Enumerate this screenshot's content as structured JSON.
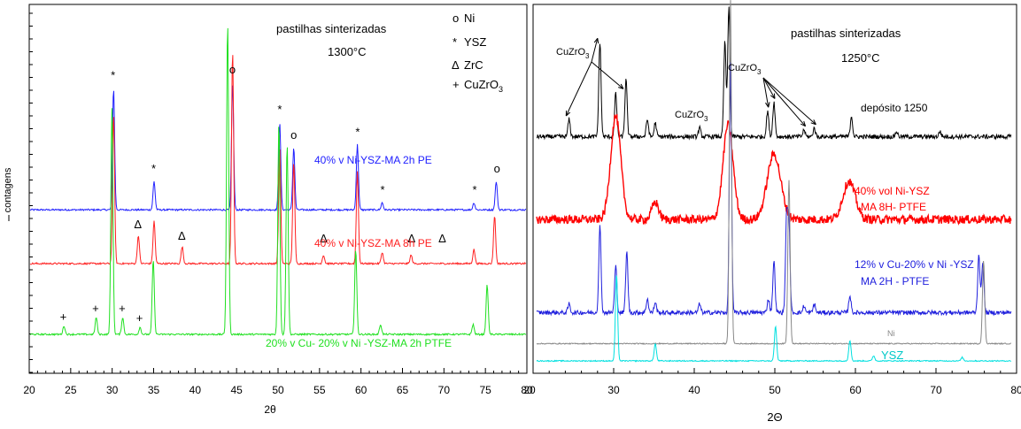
{
  "chart_data": [
    {
      "type": "line",
      "title": "pastilhas sinterizadas",
      "subtitle": "1300°C",
      "xlabel": "2θ",
      "ylabel": "contagens",
      "xlim": [
        20,
        80
      ],
      "xticks": [
        20,
        25,
        30,
        35,
        40,
        45,
        50,
        55,
        60,
        65,
        70,
        75,
        80
      ],
      "xtick_labels": [
        "20",
        "25",
        "30",
        "35",
        "40",
        "45",
        "50",
        "55",
        "60",
        "65",
        "70",
        "75",
        "80"
      ],
      "legend": [
        {
          "symbol": "o",
          "name": "Ni"
        },
        {
          "symbol": "*",
          "name": "YSZ"
        },
        {
          "symbol": "Δ",
          "name": "ZrC"
        },
        {
          "symbol": "+",
          "name": "CuZrO3"
        }
      ],
      "series": [
        {
          "name": "40% v Ni-YSZ-MA 2h PE",
          "color": "#2020ff",
          "baseline": 0.88,
          "peaks": [
            {
              "x": 30.1,
              "h": 0.86
            },
            {
              "x": 35.0,
              "h": 0.2
            },
            {
              "x": 44.5,
              "h": 0.9
            },
            {
              "x": 50.2,
              "h": 0.62
            },
            {
              "x": 51.9,
              "h": 0.44
            },
            {
              "x": 59.6,
              "h": 0.46
            },
            {
              "x": 62.6,
              "h": 0.05
            },
            {
              "x": 73.7,
              "h": 0.05
            },
            {
              "x": 76.4,
              "h": 0.2
            }
          ],
          "markers": [
            {
              "x": 30.1,
              "symbol": "*"
            },
            {
              "x": 35.0,
              "symbol": "*"
            },
            {
              "x": 44.5,
              "symbol": "o"
            },
            {
              "x": 50.2,
              "symbol": "*"
            },
            {
              "x": 51.9,
              "symbol": "o"
            },
            {
              "x": 59.6,
              "symbol": "*"
            },
            {
              "x": 62.6,
              "symbol": "*"
            },
            {
              "x": 73.7,
              "symbol": "*"
            },
            {
              "x": 76.4,
              "symbol": "o"
            }
          ]
        },
        {
          "name": "40% v Ni-YSZ-MA 8h PE",
          "color": "#ff2020",
          "baseline": 0.5,
          "peaks": [
            {
              "x": 30.1,
              "h": 1.05
            },
            {
              "x": 33.1,
              "h": 0.2
            },
            {
              "x": 35.0,
              "h": 0.3
            },
            {
              "x": 38.4,
              "h": 0.12
            },
            {
              "x": 44.5,
              "h": 1.5
            },
            {
              "x": 50.2,
              "h": 0.82
            },
            {
              "x": 51.9,
              "h": 0.72
            },
            {
              "x": 55.5,
              "h": 0.06
            },
            {
              "x": 59.6,
              "h": 0.65
            },
            {
              "x": 62.6,
              "h": 0.08
            },
            {
              "x": 66.1,
              "h": 0.06
            },
            {
              "x": 73.7,
              "h": 0.1
            },
            {
              "x": 76.2,
              "h": 0.34
            }
          ],
          "markers": [
            {
              "x": 33.1,
              "symbol": "Δ"
            },
            {
              "x": 38.4,
              "symbol": "Δ"
            },
            {
              "x": 55.5,
              "symbol": "Δ"
            },
            {
              "x": 66.1,
              "symbol": "Δ"
            },
            {
              "x": 69.8,
              "symbol": "Δ"
            }
          ]
        },
        {
          "name": "20% v Cu- 20% v Ni -YSZ-MA 2h PTFE",
          "color": "#20e020",
          "baseline": 0.0,
          "peaks": [
            {
              "x": 24.1,
              "h": 0.06
            },
            {
              "x": 28.0,
              "h": 0.12
            },
            {
              "x": 29.9,
              "h": 1.6
            },
            {
              "x": 31.2,
              "h": 0.12
            },
            {
              "x": 33.3,
              "h": 0.05
            },
            {
              "x": 34.9,
              "h": 0.53
            },
            {
              "x": 43.9,
              "h": 2.2
            },
            {
              "x": 50.1,
              "h": 1.5
            },
            {
              "x": 51.1,
              "h": 1.35
            },
            {
              "x": 59.4,
              "h": 0.6
            },
            {
              "x": 62.4,
              "h": 0.07
            },
            {
              "x": 73.6,
              "h": 0.07
            },
            {
              "x": 75.3,
              "h": 0.35
            }
          ],
          "markers": [
            {
              "x": 24.1,
              "symbol": "+"
            },
            {
              "x": 28.0,
              "symbol": "+"
            },
            {
              "x": 31.2,
              "symbol": "+"
            },
            {
              "x": 33.3,
              "symbol": "+"
            }
          ]
        }
      ]
    },
    {
      "type": "line",
      "title": "pastilhas sinterizadas",
      "subtitle": "1250°C",
      "xlabel": "2Θ",
      "xlim": [
        20,
        80
      ],
      "xticks": [
        20,
        30,
        40,
        50,
        60,
        70,
        80
      ],
      "xtick_labels": [
        "20",
        "30",
        "40",
        "50",
        "60",
        "70",
        "80"
      ],
      "annotations": [
        {
          "text": "CuZrO3",
          "x": 28.5,
          "targets": [
            24.1,
            28.0,
            31.2
          ]
        },
        {
          "text": "CuZrO3",
          "x": 51.5,
          "targets": [
            49.2,
            50.0,
            53.8,
            55.1
          ]
        },
        {
          "text": "CuZrO3",
          "x": 40.0,
          "targets": []
        }
      ],
      "series": [
        {
          "name": "depósito 1250",
          "color": "#000000",
          "baseline": 1.3,
          "peaks": [
            {
              "x": 24.1,
              "h": 0.1
            },
            {
              "x": 28.0,
              "h": 0.55
            },
            {
              "x": 30.0,
              "h": 0.25
            },
            {
              "x": 31.3,
              "h": 0.33
            },
            {
              "x": 34.0,
              "h": 0.1
            },
            {
              "x": 35.0,
              "h": 0.08
            },
            {
              "x": 40.6,
              "h": 0.05
            },
            {
              "x": 43.8,
              "h": 0.55
            },
            {
              "x": 44.3,
              "h": 0.75
            },
            {
              "x": 49.2,
              "h": 0.15
            },
            {
              "x": 50.0,
              "h": 0.2
            },
            {
              "x": 53.8,
              "h": 0.04
            },
            {
              "x": 55.1,
              "h": 0.05
            },
            {
              "x": 59.8,
              "h": 0.12
            },
            {
              "x": 65.5,
              "h": 0.03
            },
            {
              "x": 71.0,
              "h": 0.03
            }
          ]
        },
        {
          "name": "40% vol Ni-YSZ MA 8H- PTFE",
          "color": "#ff0000",
          "baseline": 0.82,
          "peaks": [
            {
              "x": 30.0,
              "h": 0.6,
              "w": 0.9
            },
            {
              "x": 35.0,
              "h": 0.1,
              "w": 0.6
            },
            {
              "x": 44.2,
              "h": 0.55,
              "w": 0.9
            },
            {
              "x": 50.0,
              "h": 0.38,
              "w": 1.2
            },
            {
              "x": 59.5,
              "h": 0.22,
              "w": 1.1
            }
          ]
        },
        {
          "name": "12% v Cu-20% v Ni -YSZ MA 2H - PTFE",
          "color": "#2020dd",
          "baseline": 0.28,
          "peaks": [
            {
              "x": 24.1,
              "h": 0.05
            },
            {
              "x": 28.0,
              "h": 0.5
            },
            {
              "x": 30.0,
              "h": 0.27
            },
            {
              "x": 31.4,
              "h": 0.35
            },
            {
              "x": 34.0,
              "h": 0.08
            },
            {
              "x": 35.0,
              "h": 0.06
            },
            {
              "x": 40.6,
              "h": 0.05
            },
            {
              "x": 44.5,
              "h": 1.45
            },
            {
              "x": 49.3,
              "h": 0.08
            },
            {
              "x": 50.0,
              "h": 0.3
            },
            {
              "x": 51.6,
              "h": 0.55
            },
            {
              "x": 51.9,
              "h": 0.5
            },
            {
              "x": 53.8,
              "h": 0.04
            },
            {
              "x": 55.1,
              "h": 0.05
            },
            {
              "x": 59.6,
              "h": 0.1
            },
            {
              "x": 75.9,
              "h": 0.34
            },
            {
              "x": 76.4,
              "h": 0.3
            }
          ]
        },
        {
          "name": "Ni",
          "color": "#888888",
          "baseline": 0.1,
          "peaks": [
            {
              "x": 44.5,
              "h": 2.0
            },
            {
              "x": 51.9,
              "h": 0.95
            },
            {
              "x": 76.5,
              "h": 0.48
            }
          ]
        },
        {
          "name": "YSZ",
          "color": "#00e0e0",
          "baseline": 0.0,
          "peaks": [
            {
              "x": 30.1,
              "h": 0.5
            },
            {
              "x": 35.0,
              "h": 0.1
            },
            {
              "x": 50.2,
              "h": 0.2
            },
            {
              "x": 59.6,
              "h": 0.12
            },
            {
              "x": 62.6,
              "h": 0.03
            },
            {
              "x": 73.8,
              "h": 0.02
            }
          ]
        }
      ]
    }
  ]
}
